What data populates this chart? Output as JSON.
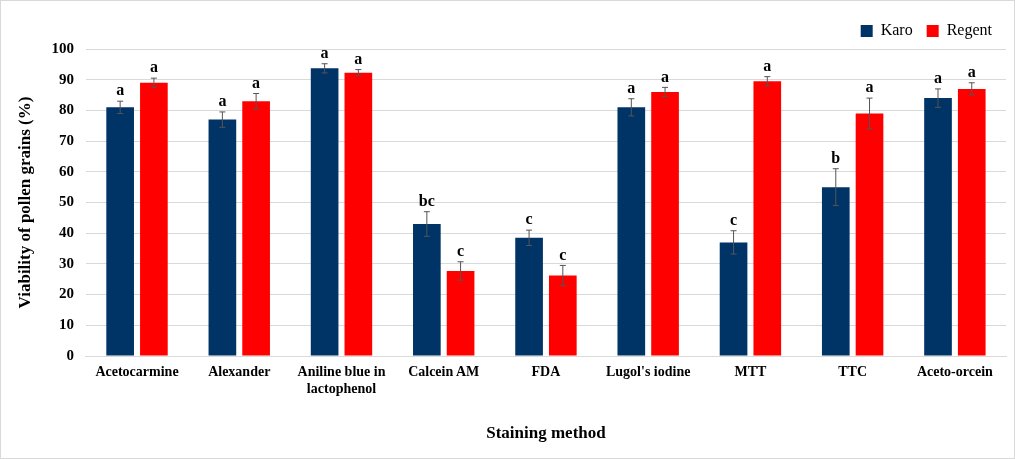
{
  "chart_data": {
    "type": "bar",
    "xlabel": "Staining method",
    "ylabel": "Viability of pollen grains (%)",
    "categories": [
      "Acetocarmine",
      "Alexander",
      "Aniline blue in lactophenol",
      "Calcein AM",
      "FDA",
      "Lugol's iodine",
      "MTT",
      "TTC",
      "Aceto-orcein"
    ],
    "series": [
      {
        "name": "Karo",
        "color": "#003366",
        "values": [
          81,
          77,
          93.7,
          43,
          38.5,
          81,
          37,
          55,
          84
        ],
        "errors": [
          2,
          2.5,
          1.5,
          4,
          2.5,
          2.8,
          3.8,
          6,
          3
        ]
      },
      {
        "name": "Regent",
        "color": "#ff0000",
        "values": [
          89,
          83,
          92.3,
          27.7,
          26.2,
          86,
          89.5,
          79,
          87
        ],
        "errors": [
          1.5,
          2.5,
          1,
          3,
          3.3,
          1.5,
          1.5,
          5,
          2
        ]
      }
    ],
    "ylim": [
      0,
      100
    ],
    "yticks": [
      0,
      10,
      20,
      30,
      40,
      50,
      60,
      70,
      80,
      90,
      100
    ],
    "grid": "y",
    "legend": "top right",
    "annotations": [
      "a",
      "a",
      "a",
      "a",
      "a",
      "a",
      "bc",
      "c",
      "c",
      "c",
      "a",
      "a",
      "c",
      "a",
      "b",
      "a",
      "a",
      "a"
    ]
  }
}
